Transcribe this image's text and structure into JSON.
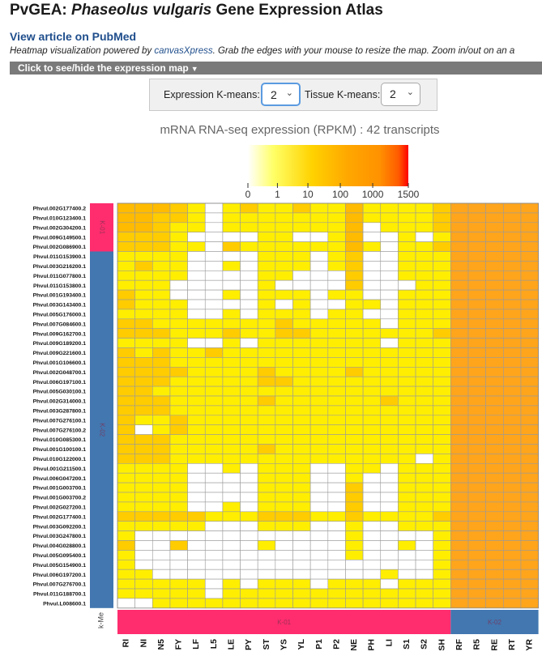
{
  "page": {
    "title_prefix": "PvGEA: ",
    "title_species": "Phaseolus vulgaris",
    "title_suffix": " Gene Expression Atlas",
    "pubmed_link": "View article on PubMed",
    "powered_pre": "Heatmap visualization powered by ",
    "powered_link": "canvasXpress",
    "powered_post": ". Grab the edges with your mouse to resize the map. Zoom in/out on an a",
    "toggle_label": "Click to see/hide the expression map",
    "toggle_caret": "▼"
  },
  "controls": {
    "expression_kmeans_label": "Expression K-means:",
    "expression_kmeans_value": "2",
    "tissue_kmeans_label": "Tissue K-means:",
    "tissue_kmeans_value": "2"
  },
  "chart_data": {
    "type": "heatmap",
    "title": "mRNA RNA-seq expression (RPKM) : 42 transcripts",
    "color_scale": {
      "ticks": [
        "0",
        "1",
        "10",
        "100",
        "1000",
        "1500"
      ],
      "values": [
        0,
        1,
        10,
        100,
        1000,
        1500
      ],
      "colors": [
        "#ffffff",
        "#ffff00",
        "#ffd200",
        "#ffb300",
        "#ff9c00",
        "#ff0000"
      ]
    },
    "columns": [
      "RI",
      "NI",
      "N5",
      "FY",
      "LF",
      "L5",
      "LE",
      "PY",
      "ST",
      "YS",
      "YL",
      "P1",
      "P2",
      "NE",
      "PH",
      "LI",
      "S1",
      "S2",
      "SH",
      "RF",
      "R5",
      "RE",
      "RT",
      "YR"
    ],
    "column_clusters": {
      "label": "k-Me",
      "groups": [
        {
          "name": "K-01",
          "count": 19,
          "color": "#ff2d6e"
        },
        {
          "name": "K-02",
          "count": 5,
          "color": "#4277b0"
        }
      ]
    },
    "row_clusters": [
      {
        "name": "K-01",
        "count": 5,
        "color": "#ff2d6e"
      },
      {
        "name": "K-02",
        "count": 37,
        "color": "#4277b0"
      }
    ],
    "rows": [
      "Phvul.002G177400.2",
      "Phvul.010G123400.1",
      "Phvul.002G304200.1",
      "Phvul.009G149500.1",
      "Phvul.002G086900.1",
      "Phvul.011G153900.1",
      "Phvul.003G216200.1",
      "Phvul.011G077800.1",
      "Phvul.011G153800.1",
      "Phvul.001G193400.1",
      "Phvul.003G143400.1",
      "Phvul.005G176000.1",
      "Phvul.007G084600.1",
      "Phvul.009G162700.1",
      "Phvul.009G189200.1",
      "Phvul.009G221600.1",
      "Phvul.001G106600.1",
      "Phvul.002G048700.1",
      "Phvul.006G197100.1",
      "Phvul.005G030100.1",
      "Phvul.002G314000.1",
      "Phvul.003G287800.1",
      "Phvul.007G276100.1",
      "Phvul.007G276100.2",
      "Phvul.010G085300.1",
      "Phvul.001G100100.1",
      "Phvul.010G122000.1",
      "Phvul.001G211500.1",
      "Phvul.006G047200.1",
      "Phvul.001G003700.1",
      "Phvul.001G003700.2",
      "Phvul.002G027200.1",
      "Phvul.002G177400.1",
      "Phvul.003G092200.1",
      "Phvul.003G247800.1",
      "Phvul.004G028800.1",
      "Phvul.005G095400.1",
      "Phvul.005G154900.1",
      "Phvul.006G197200.1",
      "Phvul.007G276700.1",
      "Phvul.011G188700.1",
      "Phvul.L008600.1"
    ],
    "matrix_levels_legend": "0=white, 1=pale yellow, 2=yellow, 3=gold, 4=light orange, 5=orange",
    "values": [
      [
        4,
        4,
        4,
        3,
        2,
        0,
        2,
        3,
        2,
        2,
        3,
        2,
        2,
        4,
        2,
        2,
        2,
        2,
        3,
        5,
        5,
        5,
        5,
        5
      ],
      [
        4,
        4,
        3,
        3,
        2,
        0,
        2,
        2,
        2,
        2,
        2,
        2,
        2,
        4,
        2,
        2,
        2,
        2,
        3,
        5,
        5,
        5,
        5,
        5
      ],
      [
        4,
        4,
        3,
        2,
        2,
        0,
        2,
        2,
        2,
        2,
        2,
        2,
        2,
        4,
        0,
        2,
        2,
        2,
        3,
        5,
        5,
        5,
        5,
        5
      ],
      [
        3,
        3,
        3,
        2,
        0,
        0,
        0,
        0,
        2,
        2,
        0,
        0,
        2,
        4,
        0,
        0,
        2,
        0,
        2,
        5,
        5,
        5,
        5,
        5
      ],
      [
        3,
        3,
        3,
        2,
        2,
        0,
        3,
        2,
        2,
        2,
        2,
        2,
        2,
        4,
        2,
        0,
        2,
        2,
        3,
        5,
        5,
        5,
        5,
        5
      ],
      [
        2,
        2,
        2,
        2,
        0,
        0,
        0,
        0,
        2,
        2,
        2,
        0,
        2,
        3,
        0,
        0,
        2,
        2,
        2,
        5,
        5,
        5,
        5,
        5
      ],
      [
        2,
        3,
        2,
        2,
        0,
        0,
        2,
        0,
        2,
        2,
        2,
        0,
        2,
        3,
        0,
        0,
        2,
        2,
        2,
        5,
        5,
        5,
        5,
        5
      ],
      [
        2,
        2,
        2,
        2,
        0,
        0,
        0,
        0,
        2,
        2,
        0,
        0,
        0,
        3,
        0,
        0,
        2,
        2,
        2,
        5,
        5,
        5,
        5,
        5
      ],
      [
        2,
        2,
        2,
        0,
        0,
        0,
        0,
        0,
        2,
        0,
        0,
        0,
        0,
        3,
        0,
        0,
        0,
        2,
        2,
        5,
        5,
        5,
        5,
        5
      ],
      [
        3,
        2,
        2,
        0,
        0,
        0,
        2,
        0,
        2,
        2,
        2,
        0,
        2,
        2,
        0,
        0,
        2,
        2,
        2,
        5,
        5,
        5,
        5,
        5
      ],
      [
        3,
        2,
        2,
        2,
        0,
        0,
        0,
        0,
        2,
        0,
        2,
        0,
        0,
        2,
        2,
        0,
        2,
        2,
        2,
        5,
        5,
        5,
        5,
        5
      ],
      [
        2,
        2,
        2,
        2,
        0,
        0,
        2,
        0,
        2,
        2,
        2,
        0,
        2,
        2,
        0,
        0,
        2,
        2,
        2,
        5,
        5,
        5,
        5,
        5
      ],
      [
        3,
        3,
        2,
        2,
        2,
        2,
        2,
        2,
        2,
        3,
        2,
        2,
        2,
        2,
        2,
        0,
        2,
        2,
        2,
        5,
        5,
        5,
        5,
        5
      ],
      [
        3,
        3,
        3,
        2,
        2,
        2,
        3,
        2,
        2,
        3,
        3,
        2,
        2,
        2,
        2,
        2,
        2,
        2,
        3,
        5,
        5,
        5,
        5,
        5
      ],
      [
        2,
        2,
        2,
        2,
        0,
        0,
        2,
        0,
        2,
        2,
        2,
        2,
        2,
        2,
        2,
        0,
        2,
        2,
        2,
        5,
        5,
        5,
        5,
        5
      ],
      [
        3,
        2,
        3,
        2,
        2,
        3,
        2,
        2,
        2,
        2,
        2,
        2,
        2,
        2,
        2,
        2,
        2,
        2,
        2,
        5,
        5,
        5,
        5,
        5
      ],
      [
        3,
        3,
        3,
        2,
        2,
        2,
        2,
        2,
        2,
        2,
        2,
        2,
        2,
        2,
        2,
        2,
        2,
        2,
        2,
        5,
        5,
        5,
        5,
        5
      ],
      [
        3,
        3,
        3,
        3,
        2,
        2,
        2,
        2,
        3,
        2,
        2,
        2,
        2,
        3,
        2,
        2,
        2,
        2,
        2,
        5,
        5,
        5,
        5,
        5
      ],
      [
        3,
        3,
        3,
        2,
        2,
        2,
        2,
        2,
        3,
        3,
        2,
        2,
        2,
        2,
        2,
        2,
        2,
        2,
        2,
        5,
        5,
        5,
        5,
        5
      ],
      [
        3,
        3,
        2,
        2,
        2,
        2,
        2,
        2,
        2,
        2,
        2,
        2,
        2,
        2,
        2,
        2,
        2,
        2,
        2,
        5,
        5,
        5,
        5,
        5
      ],
      [
        3,
        3,
        3,
        2,
        2,
        2,
        2,
        2,
        3,
        2,
        2,
        2,
        2,
        2,
        2,
        3,
        2,
        2,
        2,
        5,
        5,
        5,
        5,
        5
      ],
      [
        3,
        3,
        3,
        2,
        2,
        2,
        2,
        2,
        2,
        2,
        2,
        2,
        2,
        2,
        2,
        2,
        2,
        2,
        2,
        5,
        5,
        5,
        5,
        5
      ],
      [
        3,
        2,
        2,
        3,
        2,
        2,
        2,
        2,
        2,
        2,
        2,
        2,
        2,
        2,
        2,
        2,
        2,
        2,
        2,
        5,
        5,
        5,
        5,
        5
      ],
      [
        3,
        0,
        2,
        3,
        2,
        2,
        2,
        2,
        2,
        2,
        2,
        2,
        2,
        2,
        2,
        2,
        2,
        2,
        2,
        5,
        5,
        5,
        5,
        5
      ],
      [
        3,
        3,
        3,
        2,
        2,
        2,
        2,
        2,
        2,
        2,
        2,
        2,
        2,
        2,
        2,
        2,
        2,
        2,
        2,
        5,
        5,
        5,
        5,
        5
      ],
      [
        3,
        3,
        3,
        2,
        2,
        2,
        2,
        2,
        3,
        2,
        2,
        2,
        2,
        2,
        2,
        2,
        2,
        2,
        2,
        5,
        5,
        5,
        5,
        5
      ],
      [
        3,
        3,
        3,
        2,
        2,
        2,
        2,
        2,
        2,
        2,
        2,
        2,
        2,
        2,
        2,
        2,
        2,
        0,
        2,
        5,
        5,
        5,
        5,
        5
      ],
      [
        2,
        2,
        2,
        2,
        0,
        0,
        2,
        0,
        2,
        2,
        2,
        0,
        0,
        2,
        2,
        0,
        2,
        2,
        2,
        5,
        5,
        5,
        5,
        5
      ],
      [
        2,
        2,
        2,
        2,
        0,
        0,
        0,
        0,
        2,
        2,
        2,
        0,
        0,
        2,
        0,
        0,
        2,
        2,
        2,
        5,
        5,
        5,
        5,
        5
      ],
      [
        2,
        2,
        2,
        2,
        0,
        0,
        0,
        0,
        2,
        2,
        2,
        0,
        0,
        3,
        0,
        0,
        2,
        2,
        2,
        5,
        5,
        5,
        5,
        5
      ],
      [
        2,
        2,
        2,
        2,
        0,
        0,
        0,
        0,
        2,
        2,
        2,
        0,
        0,
        3,
        0,
        0,
        2,
        2,
        2,
        5,
        5,
        5,
        5,
        5
      ],
      [
        2,
        2,
        2,
        2,
        0,
        0,
        2,
        0,
        2,
        2,
        2,
        0,
        0,
        3,
        0,
        0,
        2,
        2,
        2,
        5,
        5,
        5,
        5,
        5
      ],
      [
        3,
        3,
        3,
        3,
        3,
        2,
        2,
        2,
        3,
        3,
        3,
        2,
        2,
        3,
        2,
        2,
        2,
        2,
        3,
        5,
        5,
        5,
        5,
        5
      ],
      [
        2,
        2,
        2,
        2,
        2,
        0,
        0,
        0,
        2,
        2,
        2,
        0,
        0,
        2,
        0,
        0,
        2,
        2,
        2,
        5,
        5,
        5,
        5,
        5
      ],
      [
        2,
        0,
        0,
        0,
        0,
        0,
        0,
        0,
        0,
        0,
        0,
        0,
        0,
        2,
        0,
        0,
        0,
        0,
        2,
        5,
        5,
        5,
        5,
        5
      ],
      [
        3,
        0,
        0,
        3,
        0,
        0,
        0,
        0,
        2,
        0,
        0,
        0,
        0,
        2,
        0,
        0,
        2,
        0,
        2,
        5,
        5,
        5,
        5,
        5
      ],
      [
        2,
        0,
        0,
        0,
        0,
        0,
        0,
        0,
        0,
        0,
        0,
        0,
        0,
        2,
        0,
        0,
        0,
        0,
        2,
        5,
        5,
        5,
        5,
        5
      ],
      [
        2,
        0,
        0,
        0,
        0,
        0,
        0,
        0,
        0,
        0,
        0,
        0,
        0,
        0,
        0,
        0,
        0,
        0,
        2,
        5,
        5,
        5,
        5,
        5
      ],
      [
        2,
        2,
        0,
        0,
        0,
        0,
        0,
        0,
        0,
        0,
        0,
        0,
        0,
        0,
        0,
        2,
        0,
        0,
        2,
        5,
        5,
        5,
        5,
        5
      ],
      [
        2,
        2,
        2,
        2,
        2,
        0,
        2,
        0,
        2,
        2,
        2,
        0,
        2,
        2,
        2,
        0,
        2,
        2,
        2,
        5,
        5,
        5,
        5,
        5
      ],
      [
        2,
        2,
        2,
        2,
        2,
        0,
        2,
        2,
        2,
        2,
        2,
        2,
        2,
        2,
        2,
        2,
        2,
        2,
        2,
        5,
        5,
        5,
        5,
        5
      ],
      [
        0,
        0,
        2,
        2,
        2,
        2,
        2,
        2,
        2,
        2,
        2,
        2,
        2,
        2,
        2,
        2,
        2,
        2,
        2,
        5,
        5,
        5,
        5,
        5
      ]
    ],
    "level_colors": [
      "#ffffff",
      "#ffff9a",
      "#ffee00",
      "#ffcc00",
      "#ffbb00",
      "#ffa51c"
    ],
    "axis_row_cluster_label": "k-Me"
  }
}
